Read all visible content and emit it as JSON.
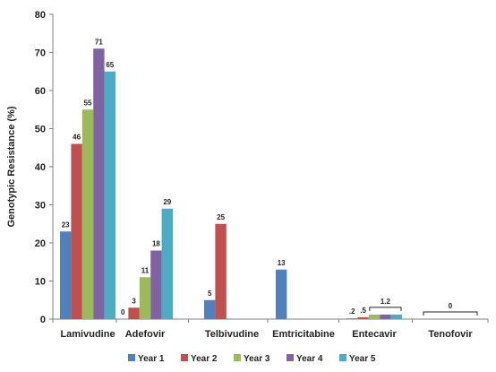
{
  "chart_data": {
    "type": "bar",
    "title": "",
    "xlabel": "",
    "ylabel": "Genotypic Resistance (%)",
    "ylim": [
      0,
      80
    ],
    "yticks": [
      0,
      10,
      20,
      30,
      40,
      50,
      60,
      70,
      80
    ],
    "grid": false,
    "legend_position": "bottom",
    "categories": [
      "Lamivudine",
      "Adefovir",
      "Telbivudine",
      "Emtricitabine",
      "Entecavir",
      "Tenofovir"
    ],
    "series": [
      {
        "name": "Year 1",
        "color": "#4F81BD",
        "values": [
          23,
          0,
          5,
          13,
          0.2,
          0
        ]
      },
      {
        "name": "Year 2",
        "color": "#C0504D",
        "values": [
          46,
          3,
          25,
          null,
          0.5,
          null
        ]
      },
      {
        "name": "Year 3",
        "color": "#9BBB59",
        "values": [
          55,
          11,
          null,
          null,
          1.2,
          null
        ]
      },
      {
        "name": "Year 4",
        "color": "#8064A2",
        "values": [
          71,
          18,
          null,
          null,
          1.2,
          null
        ]
      },
      {
        "name": "Year 5",
        "color": "#4BACC6",
        "values": [
          65,
          29,
          null,
          null,
          1.2,
          null
        ]
      }
    ],
    "data_labels": [
      {
        "category": "Lamivudine",
        "series": "Year 1",
        "text": "23"
      },
      {
        "category": "Lamivudine",
        "series": "Year 2",
        "text": "46"
      },
      {
        "category": "Lamivudine",
        "series": "Year 3",
        "text": "55"
      },
      {
        "category": "Lamivudine",
        "series": "Year 4",
        "text": "71"
      },
      {
        "category": "Lamivudine",
        "series": "Year 5",
        "text": "65"
      },
      {
        "category": "Adefovir",
        "series": "Year 1",
        "text": "0"
      },
      {
        "category": "Adefovir",
        "series": "Year 2",
        "text": "3"
      },
      {
        "category": "Adefovir",
        "series": "Year 3",
        "text": "11"
      },
      {
        "category": "Adefovir",
        "series": "Year 4",
        "text": "18"
      },
      {
        "category": "Adefovir",
        "series": "Year 5",
        "text": "29"
      },
      {
        "category": "Telbivudine",
        "series": "Year 1",
        "text": "5"
      },
      {
        "category": "Telbivudine",
        "series": "Year 2",
        "text": "25"
      },
      {
        "category": "Emtricitabine",
        "series": "Year 1",
        "text": "13"
      },
      {
        "category": "Entecavir",
        "series": "Year 1",
        "text": ".2"
      },
      {
        "category": "Entecavir",
        "series": "Year 2",
        "text": ".5"
      }
    ],
    "bracket_annotations": [
      {
        "category": "Entecavir",
        "series": [
          "Year 3",
          "Year 4",
          "Year 5"
        ],
        "text": "1.2"
      },
      {
        "category": "Tenofovir",
        "series": [
          "Year 1",
          "Year 2",
          "Year 3",
          "Year 4",
          "Year 5"
        ],
        "text": "0"
      }
    ]
  }
}
